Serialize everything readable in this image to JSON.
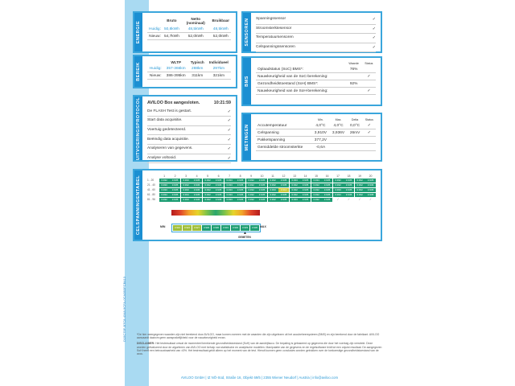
{
  "doc_id": "D15C75F-B7C8-4348-9CFA-0CA0B3FCB413",
  "energie": {
    "tab": "ENERGIE",
    "headers": [
      "Bruto",
      "Netto (nominaal)",
      "Bruikbaar"
    ],
    "rows": [
      {
        "label": "Huidig:",
        "values": [
          "50,8kWh",
          "48,5kWh",
          "48,5kWh"
        ]
      },
      {
        "label": "Nieuw:",
        "values": [
          "54,7kWh",
          "52,0kWh",
          "52,0kWh"
        ]
      }
    ]
  },
  "bereik": {
    "tab": "BEREIK",
    "headers": [
      "WLTP",
      "Typisch",
      "Individueel"
    ],
    "rows": [
      {
        "label": "Huidig:",
        "values": [
          "357-366km",
          "288km",
          "297km"
        ]
      },
      {
        "label": "Nieuw:",
        "values": [
          "386-395km",
          "311km",
          "321km"
        ]
      }
    ]
  },
  "protocol": {
    "tab": "UITVOERINGSPROTOCOL",
    "title": "AVILOO Box aangesloten.",
    "time": "10:21:59",
    "items": [
      "De FLASH Test is gestart.",
      "Start data acquisitie.",
      "Voertuig gedetecteerd.",
      "Beëindig data acquisitie.",
      "Analyseren van gegevens.",
      "Analyse voltooid."
    ]
  },
  "sensoren": {
    "tab": "SENSOREN",
    "items": [
      "Spanningssensor",
      "Stroomsterktesensor",
      "Temperatuursensoren",
      "Celspanningssensoren"
    ]
  },
  "bms": {
    "tab": "BMS",
    "headers": [
      "Waarde",
      "Status"
    ],
    "rows": [
      {
        "label": "Oplaadstatus (SoC) BMS*:",
        "value": "76%",
        "check": false
      },
      {
        "label": "Nauwkeurigheid van de SoC-berekening:",
        "value": "",
        "check": true
      },
      {
        "label": "Gezondheidstoestand (SoH) BMS*:",
        "value": "92%",
        "check": false
      },
      {
        "label": "Nauwkeurigheid van de SoH-berekening:",
        "value": "",
        "check": true
      }
    ]
  },
  "metingen": {
    "tab": "METINGEN",
    "headers": [
      "Min.",
      "Max.",
      "Delta",
      "Status"
    ],
    "rows": [
      {
        "label": "Accutemperatuur",
        "values": [
          "4,0°C",
          "4,0°C",
          "0,0°C"
        ],
        "check": true
      },
      {
        "label": "Celspanning",
        "values": [
          "3,910V",
          "3,936V",
          "26mV"
        ],
        "check": true
      },
      {
        "label": "Pakketspanning",
        "values": [
          "377,2V",
          "",
          ""
        ],
        "check": false
      },
      {
        "label": "Gemiddelde stroomsterkte",
        "values": [
          "-0,6A",
          "",
          ""
        ],
        "check": false
      }
    ]
  },
  "celspanning": {
    "tab": "CELSPANNINGENTABEL",
    "columns": [
      "1",
      "2",
      "3",
      "4",
      "5",
      "6",
      "7",
      "8",
      "9",
      "10",
      "11",
      "12",
      "13",
      "14",
      "15",
      "16",
      "17",
      "18",
      "19",
      "20"
    ],
    "rows": [
      {
        "label": "1 - 20",
        "values": [
          "3.932",
          "3.935",
          "3.933",
          "3.935",
          "3.932",
          "3.935",
          "3.933",
          "3.935",
          "3.932",
          "3.935",
          "3.932",
          "3.935",
          "3.933",
          "3.935",
          "3.934",
          "3.935",
          "3.932",
          "3.935",
          "3.932",
          "3.935"
        ]
      },
      {
        "label": "21 - 40",
        "values": [
          "3.933",
          "3.935",
          "3.932",
          "3.936",
          "3.932",
          "3.936",
          "3.933",
          "3.935",
          "3.932",
          "3.935",
          "3.932",
          "3.935",
          "3.932",
          "3.935",
          "3.932",
          "3.935",
          "3.932",
          "3.935",
          "3.932",
          "3.936"
        ]
      },
      {
        "label": "41 - 60",
        "values": [
          "3.933",
          "3.935",
          "3.933",
          "3.936",
          "3.932",
          "3.935",
          "3.933",
          "3.935",
          "3.932",
          "3.935",
          "3.933",
          "3.910",
          "3.932",
          "3.935",
          "3.932",
          "3.935",
          "3.933",
          "3.935",
          "3.932",
          "3.936"
        ]
      },
      {
        "label": "61 - 80",
        "values": [
          "3.934",
          "3.935",
          "3.934",
          "3.935",
          "3.932",
          "3.935",
          "3.933",
          "3.935",
          "3.932",
          "3.935",
          "3.932",
          "3.935",
          "3.932",
          "3.935",
          "3.932",
          "3.935",
          "3.934",
          "3.936",
          "3.932",
          "3.935"
        ]
      },
      {
        "label": "81 - 96",
        "values": [
          "3.932",
          "3.935",
          "3.933",
          "3.936",
          "3.932",
          "3.936",
          "3.933",
          "3.935",
          "3.932",
          "3.935",
          "3.932",
          "3.935",
          "3.933",
          "3.935",
          "3.932",
          "3.935"
        ]
      }
    ],
    "min_label": "MIN",
    "max_label": "MAX",
    "measured_label": "GEMETEN",
    "zoom_values": [
      "3.910",
      "3.922",
      "3.927",
      "3.929",
      "3.930",
      "3.931",
      "3.932",
      "3.933",
      "3.936"
    ]
  },
  "footer": {
    "note": "*De hier weergegeven waarden zijn niet berekend door AVILOO, maar komen overeen met de waarden die zijn uitgelezen uit het accubeheersysteem (BMS) en zijn berekend door de fabrikant. AVILOO aanvaardt daarom geen aansprakelijkheid voor de nauwkeurigheid ervan.",
    "disclaimer_label": "DISCLAIMER:",
    "disclaimer": "Het testresultaat omvat de momenteel berekende gezondheidstoestand (SoH) van de aandrijfaccu. De bepaling is gebaseerd op gegevens die door het voertuig zijn verstrekt. Deze worden geëvalueerd door de algoritmen van AVILOO met behulp van statistische en analytische modellen. Manipulatie van de gegevens en de regelsoftware leidt tot een onjuist resultaat. De aangegeven SoH heeft een betrouwbaarheid van ±3%. Het testresultaat geldt alleen op het moment van de test. Hieruit kunnen geen conclusies worden getrokken over de toekomstige gezondheidstoestand van de accu.",
    "address": "AVILOO GmbH  |  IZ NÖ-Süd, Straße 16, Objekt 69/5  |  2355 Wiener Neudorf  |  Austria  |  info@aviloo.com"
  }
}
